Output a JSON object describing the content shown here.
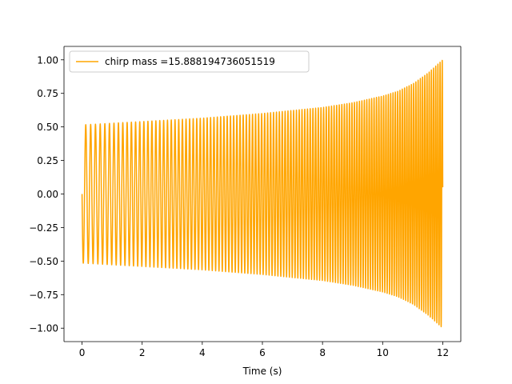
{
  "chart_data": {
    "type": "line",
    "title": "",
    "xlabel": "Time (s)",
    "ylabel": "",
    "xlim": [
      -0.6,
      12.6
    ],
    "ylim": [
      -1.1,
      1.1
    ],
    "x_ticks": [
      0,
      2,
      4,
      6,
      8,
      10,
      12
    ],
    "x_tick_labels": [
      "0",
      "2",
      "4",
      "6",
      "8",
      "10",
      "12"
    ],
    "y_ticks": [
      -1.0,
      -0.75,
      -0.5,
      -0.25,
      0.0,
      0.25,
      0.5,
      0.75,
      1.0
    ],
    "y_tick_labels": [
      "−1.00",
      "−0.75",
      "−0.50",
      "−0.25",
      "0.00",
      "0.25",
      "0.50",
      "0.75",
      "1.00"
    ],
    "grid": false,
    "legend_position": "upper-left",
    "series": [
      {
        "name": "chirp mass =15.888194736051519",
        "color": "#FFA500",
        "x_start": 0,
        "x_end": 12,
        "envelope": {
          "x": [
            0,
            2,
            4,
            6,
            8,
            9,
            10,
            10.5,
            11,
            11.5,
            12
          ],
          "amplitude": [
            0.515,
            0.54,
            0.565,
            0.6,
            0.645,
            0.68,
            0.73,
            0.765,
            0.82,
            0.9,
            1.0
          ]
        },
        "frequency_start_hz": 6,
        "frequency_end_hz": 14
      }
    ]
  }
}
